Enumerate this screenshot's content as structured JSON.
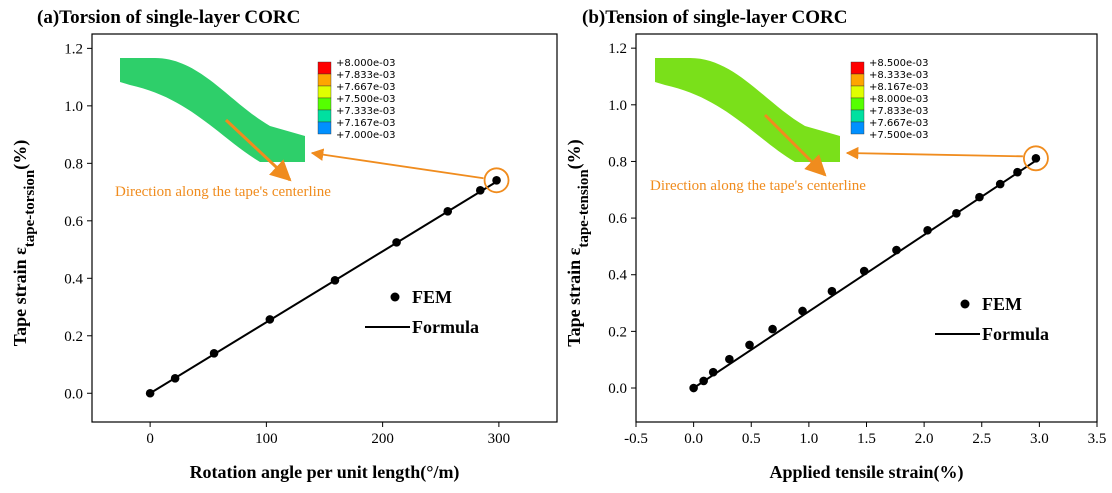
{
  "chart_data": [
    {
      "type": "scatter",
      "title": "(a)Torsion of single-layer CORC",
      "x_label": "Rotation angle per unit length(°/m)",
      "y_label": "Tape strain ε",
      "y_label_sub": "tape-torsion",
      "y_label_unit": "(%)",
      "xlim": [
        -50,
        350
      ],
      "xticks": [
        0,
        100,
        200,
        300
      ],
      "ylim": [
        -0.1,
        1.25
      ],
      "yticks": [
        {
          "value": 0,
          "label": "0.0"
        },
        0.2,
        0.4,
        0.6,
        0.8,
        {
          "value": 1,
          "label": "1.0"
        },
        1.2
      ],
      "series": [
        {
          "name": "FEM",
          "color": "#000000",
          "mode": "markers",
          "x": [
            0,
            21.5,
            55,
            103,
            159,
            212,
            256,
            284,
            298
          ],
          "values": [
            0,
            0.052,
            0.139,
            0.257,
            0.393,
            0.525,
            0.633,
            0.706,
            0.741
          ]
        },
        {
          "name": "Formula",
          "color": "#000000",
          "mode": "line",
          "x": [
            0,
            300
          ],
          "values": [
            0,
            0.741
          ]
        }
      ],
      "annotation": "Direction along the tape's centerline",
      "inset": {
        "tape_color": "#2ecf6a",
        "contour_labels": [
          "+8.000e-03",
          "+7.833e-03",
          "+7.667e-03",
          "+7.500e-03",
          "+7.333e-03",
          "+7.167e-03",
          "+7.000e-03"
        ],
        "colors": [
          "#ff0000",
          "#ffa500",
          "#e0ff00",
          "#55ff00",
          "#00e0a0",
          "#0090ff"
        ]
      }
    },
    {
      "type": "scatter",
      "title": "(b)Tension of single-layer CORC",
      "x_label": "Applied tensile strain(%)",
      "y_label": "Tape strain ε",
      "y_label_sub": "tape-tension",
      "y_label_unit": "(%)",
      "xlim": [
        -0.5,
        3.5
      ],
      "xticks": [
        -0.5,
        {
          "value": 0,
          "label": "0.0"
        },
        0.5,
        {
          "value": 1,
          "label": "1.0"
        },
        1.5,
        {
          "value": 2,
          "label": "2.0"
        },
        2.5,
        {
          "value": 3,
          "label": "3.0"
        },
        3.5
      ],
      "ylim": [
        -0.12,
        1.25
      ],
      "yticks": [
        {
          "value": 0,
          "label": "0.0"
        },
        0.2,
        0.4,
        0.6,
        0.8,
        {
          "value": 1,
          "label": "1.0"
        },
        1.2
      ],
      "series": [
        {
          "name": "FEM",
          "color": "#000000",
          "mode": "markers",
          "x": [
            0,
            0.087,
            0.17,
            0.31,
            0.485,
            0.685,
            0.945,
            1.2,
            1.48,
            1.76,
            2.03,
            2.28,
            2.48,
            2.66,
            2.81,
            2.97
          ],
          "values": [
            0,
            0.025,
            0.056,
            0.102,
            0.152,
            0.208,
            0.272,
            0.342,
            0.413,
            0.487,
            0.557,
            0.617,
            0.674,
            0.72,
            0.762,
            0.811
          ]
        },
        {
          "name": "Formula",
          "color": "#000000",
          "mode": "line",
          "x": [
            0,
            3
          ],
          "values": [
            0,
            0.811
          ]
        }
      ],
      "annotation": "Direction along the tape's centerline",
      "inset": {
        "tape_color": "#7ae01a",
        "contour_labels": [
          "+8.500e-03",
          "+8.333e-03",
          "+8.167e-03",
          "+8.000e-03",
          "+7.833e-03",
          "+7.667e-03",
          "+7.500e-03"
        ],
        "colors": [
          "#ff0000",
          "#ffa500",
          "#e0ff00",
          "#55ff00",
          "#00e0a0",
          "#0090ff"
        ]
      }
    }
  ]
}
